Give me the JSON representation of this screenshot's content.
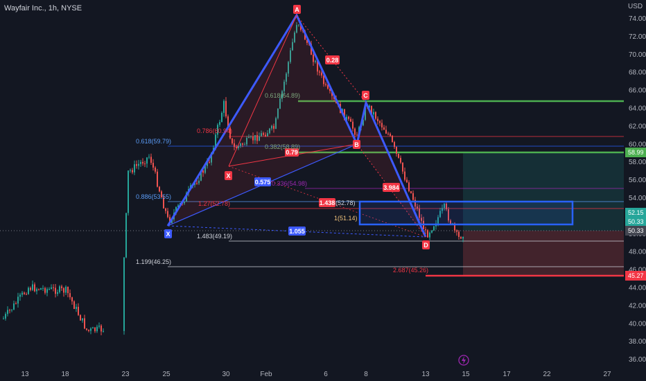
{
  "header": {
    "symbol_title": "Wayfair Inc., 1h, NYSE",
    "currency": "USD"
  },
  "price_axis": {
    "ticks": [
      "74.00",
      "72.00",
      "70.00",
      "68.00",
      "66.00",
      "64.00",
      "62.00",
      "60.00",
      "58.00",
      "56.00",
      "54.00",
      "52.00",
      "50.00",
      "48.00",
      "46.00",
      "44.00",
      "42.00",
      "40.00",
      "38.00",
      "36.00"
    ]
  },
  "time_axis": {
    "ticks": [
      "13",
      "18",
      "23",
      "25",
      "30",
      "Feb",
      "6",
      "8",
      "13",
      "15",
      "17",
      "22",
      "27"
    ]
  },
  "pattern_points": {
    "x": "X",
    "a": "A",
    "b": "B",
    "c": "C",
    "d": "D"
  },
  "pattern_ratios": {
    "xb": "0.575",
    "ac": "0.28",
    "bd": "3.984",
    "xd": "1.055",
    "bc_tag": "0.79",
    "ad_tag": "1.438"
  },
  "fib_labels": {
    "f0618_left": "0.618(59.79)",
    "f0886_left": "0.886(53.55)",
    "f1483": "1.483(49.19)",
    "f1199": "1.199(46.25)",
    "f0786_ab": "0.786(60.94)",
    "f0618_ab": "0.618(64.89)",
    "f0382": "0.382(58.89)",
    "f0336": "0.336(54.98)",
    "f127": "1.27(52.78)",
    "f2687": "2.687(45.26)",
    "f1_51": "1(51.14)",
    "f52_78_right": "(52.78)"
  },
  "price_tags": [
    {
      "label": "58.99",
      "color": "#4caf50"
    },
    {
      "label": "52.15",
      "color": "#26a69a"
    },
    {
      "label": "50.33",
      "color": "#26a69a"
    },
    {
      "label": "50.33",
      "color": "#434651"
    },
    {
      "label": "45.27",
      "color": "#f23645"
    }
  ],
  "colors": {
    "up": "#26a69a",
    "down": "#ef5350",
    "pattern": "#3d5afe",
    "tag_red": "#f23645",
    "fib_green": "#4caf50"
  },
  "icons": [
    "flash-icon"
  ]
}
